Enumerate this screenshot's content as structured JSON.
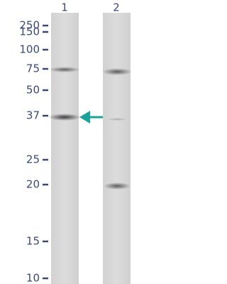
{
  "lanes": [
    "1",
    "2"
  ],
  "markers": [
    "250",
    "150",
    "100",
    "75",
    "50",
    "37",
    "25",
    "20",
    "15",
    "10"
  ]
}
